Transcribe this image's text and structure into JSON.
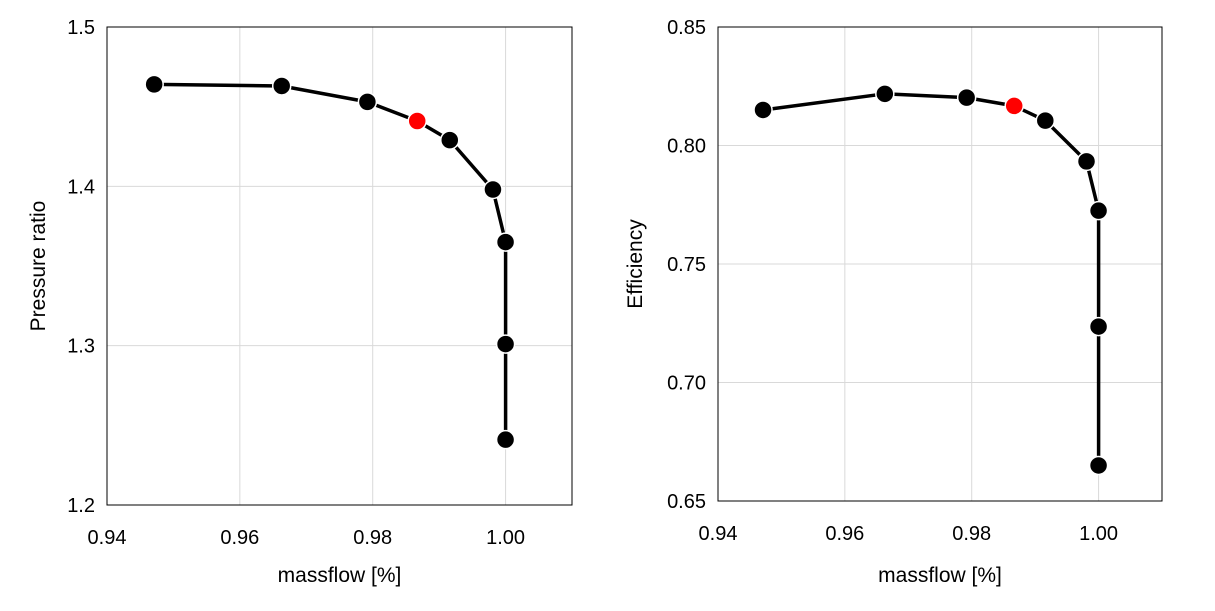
{
  "chart_data": [
    {
      "type": "line",
      "xlabel": "massflow [%]",
      "ylabel": "Pressure ratio",
      "xlim": [
        0.94,
        1.01
      ],
      "ylim": [
        1.2,
        1.5
      ],
      "xticks": [
        0.94,
        0.96,
        0.98,
        1.0
      ],
      "xtick_labels": [
        "0.94",
        "0.96",
        "0.98",
        "1.00"
      ],
      "yticks": [
        1.2,
        1.3,
        1.4,
        1.5
      ],
      "ytick_labels": [
        "1.2",
        "1.3",
        "1.4",
        "1.5"
      ],
      "grid": true,
      "series": [
        {
          "color": "#000000",
          "points": [
            {
              "x": 0.9471,
              "y": 1.464
            },
            {
              "x": 0.9663,
              "y": 1.463
            },
            {
              "x": 0.9792,
              "y": 1.453
            },
            {
              "x": 0.9867,
              "y": 1.441,
              "color": "#ff0000"
            },
            {
              "x": 0.9916,
              "y": 1.429
            },
            {
              "x": 0.9981,
              "y": 1.398
            },
            {
              "x": 1.0,
              "y": 1.365
            },
            {
              "x": 1.0,
              "y": 1.301
            },
            {
              "x": 1.0,
              "y": 1.241
            }
          ]
        }
      ]
    },
    {
      "type": "line",
      "xlabel": "massflow [%]",
      "ylabel": "Efficiency",
      "xlim": [
        0.94,
        1.01
      ],
      "ylim": [
        0.65,
        0.85
      ],
      "xticks": [
        0.94,
        0.96,
        0.98,
        1.0
      ],
      "xtick_labels": [
        "0.94",
        "0.96",
        "0.98",
        "1.00"
      ],
      "yticks": [
        0.65,
        0.7,
        0.75,
        0.8,
        0.85
      ],
      "ytick_labels": [
        "0.65",
        "0.70",
        "0.75",
        "0.80",
        "0.85"
      ],
      "grid": true,
      "series": [
        {
          "color": "#000000",
          "points": [
            {
              "x": 0.9471,
              "y": 0.815
            },
            {
              "x": 0.9663,
              "y": 0.8218
            },
            {
              "x": 0.9792,
              "y": 0.8202
            },
            {
              "x": 0.9867,
              "y": 0.8167,
              "color": "#ff0000"
            },
            {
              "x": 0.9916,
              "y": 0.8105
            },
            {
              "x": 0.9981,
              "y": 0.7933
            },
            {
              "x": 1.0,
              "y": 0.7725
            },
            {
              "x": 1.0,
              "y": 0.7236
            },
            {
              "x": 1.0,
              "y": 0.665
            }
          ]
        }
      ]
    }
  ]
}
